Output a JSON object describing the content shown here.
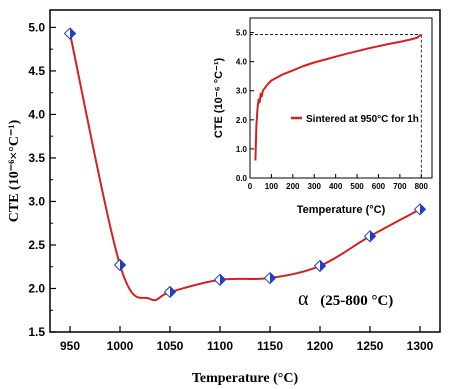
{
  "chart_data": [
    {
      "type": "line",
      "title": "",
      "xlabel": "Temperature (°C)",
      "ylabel": "CTE (10⁻⁶×°C⁻¹)",
      "xlim": [
        930,
        1320
      ],
      "ylim": [
        1.5,
        5.2
      ],
      "xticks": [
        "950",
        "1000",
        "1050",
        "1100",
        "1150",
        "1200",
        "1250",
        "1300"
      ],
      "yticks": [
        "1.5",
        "2.0",
        "2.5",
        "3.0",
        "3.5",
        "4.0",
        "4.5",
        "5.0"
      ],
      "series": [
        {
          "marker": "diamond",
          "color": "#d62020",
          "marker_color": "#1f3fc7",
          "x": [
            950,
            1000,
            1050,
            1100,
            1150,
            1200,
            1250,
            1300
          ],
          "y": [
            4.93,
            2.27,
            1.96,
            2.1,
            2.12,
            2.26,
            2.6,
            2.91
          ]
        }
      ],
      "annotation": {
        "alpha": "α",
        "range": "(25-800 °C)"
      },
      "grid": false
    },
    {
      "type": "line",
      "title": "",
      "xlabel": "Temperature (°C)",
      "ylabel": "CTE (10⁻⁶ °C⁻¹)",
      "xlim": [
        0,
        850
      ],
      "ylim": [
        0,
        5.5
      ],
      "xticks": [
        "0",
        "100",
        "200",
        "300",
        "400",
        "500",
        "600",
        "700",
        "800"
      ],
      "yticks": [
        "0.0",
        "1.0",
        "2.0",
        "3.0",
        "4.0",
        "5.0"
      ],
      "series": [
        {
          "name": "Sintered at 950°C for 1h",
          "color": "#d62020",
          "x": [
            25,
            30,
            35,
            40,
            45,
            50,
            55,
            60,
            70,
            80,
            100,
            150,
            200,
            250,
            300,
            350,
            400,
            450,
            500,
            550,
            600,
            650,
            700,
            750,
            780,
            790,
            800
          ],
          "y": [
            0.6,
            1.8,
            2.4,
            2.7,
            2.6,
            2.9,
            2.8,
            3.0,
            3.1,
            3.2,
            3.35,
            3.55,
            3.7,
            3.85,
            3.97,
            4.07,
            4.17,
            4.27,
            4.36,
            4.45,
            4.53,
            4.61,
            4.68,
            4.76,
            4.82,
            4.88,
            4.93
          ]
        }
      ],
      "reference_value": 4.93,
      "legend_position": "center",
      "grid": false
    }
  ]
}
